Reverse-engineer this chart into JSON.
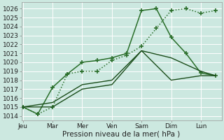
{
  "background_color": "#cce8e0",
  "grid_color": "#ffffff",
  "xlabel": "Pression niveau de la mer( hPa )",
  "x_labels": [
    "Jeu",
    "Mar",
    "Mer",
    "Ven",
    "Sam",
    "Dim",
    "Lun"
  ],
  "x_tick_pos": [
    0,
    1,
    2,
    3,
    4,
    5,
    6
  ],
  "xlim": [
    -0.05,
    6.7
  ],
  "ylim": [
    1013.5,
    1026.7
  ],
  "yticks": [
    1014,
    1015,
    1016,
    1017,
    1018,
    1019,
    1020,
    1021,
    1022,
    1023,
    1024,
    1025,
    1026
  ],
  "series": [
    {
      "name": "dotted_plus",
      "x": [
        0,
        0.5,
        1.0,
        1.5,
        2.0,
        2.5,
        3.0,
        3.5,
        4.0,
        4.5,
        5.0,
        5.5,
        6.0,
        6.5
      ],
      "y": [
        1015.0,
        1014.2,
        1015.0,
        1018.7,
        1019.0,
        1019.0,
        1020.2,
        1020.8,
        1021.8,
        1023.8,
        1025.8,
        1026.0,
        1025.5,
        1025.8
      ],
      "style": ":",
      "marker": "+",
      "color": "#2a6e2a",
      "lw": 1.1,
      "ms": 5,
      "mew": 1.2
    },
    {
      "name": "solid_peak",
      "x": [
        0,
        0.5,
        1.0,
        1.5,
        2.0,
        2.5,
        3.0,
        3.5,
        4.0,
        4.5,
        5.0,
        5.5,
        6.0,
        6.5
      ],
      "y": [
        1015.0,
        1014.2,
        1017.2,
        1018.7,
        1020.0,
        1020.2,
        1020.5,
        1021.0,
        1025.8,
        1026.0,
        1022.8,
        1021.0,
        1018.8,
        1018.5
      ],
      "style": "-",
      "marker": "+",
      "color": "#2a6e2a",
      "lw": 1.1,
      "ms": 5,
      "mew": 1.2
    },
    {
      "name": "solid_flat1",
      "x": [
        0,
        1,
        2,
        3,
        4,
        5,
        6,
        6.5
      ],
      "y": [
        1015.0,
        1015.0,
        1017.0,
        1017.5,
        1021.3,
        1018.0,
        1018.5,
        1018.5
      ],
      "style": "-",
      "marker": null,
      "color": "#1a4d1a",
      "lw": 1.0,
      "ms": 0,
      "mew": 1.0
    },
    {
      "name": "solid_flat2",
      "x": [
        0,
        1,
        2,
        3,
        4,
        5,
        6,
        6.5
      ],
      "y": [
        1015.0,
        1015.5,
        1017.5,
        1018.0,
        1021.3,
        1020.5,
        1019.0,
        1018.5
      ],
      "style": "-",
      "marker": null,
      "color": "#1a4d1a",
      "lw": 1.0,
      "ms": 0,
      "mew": 1.0
    }
  ]
}
